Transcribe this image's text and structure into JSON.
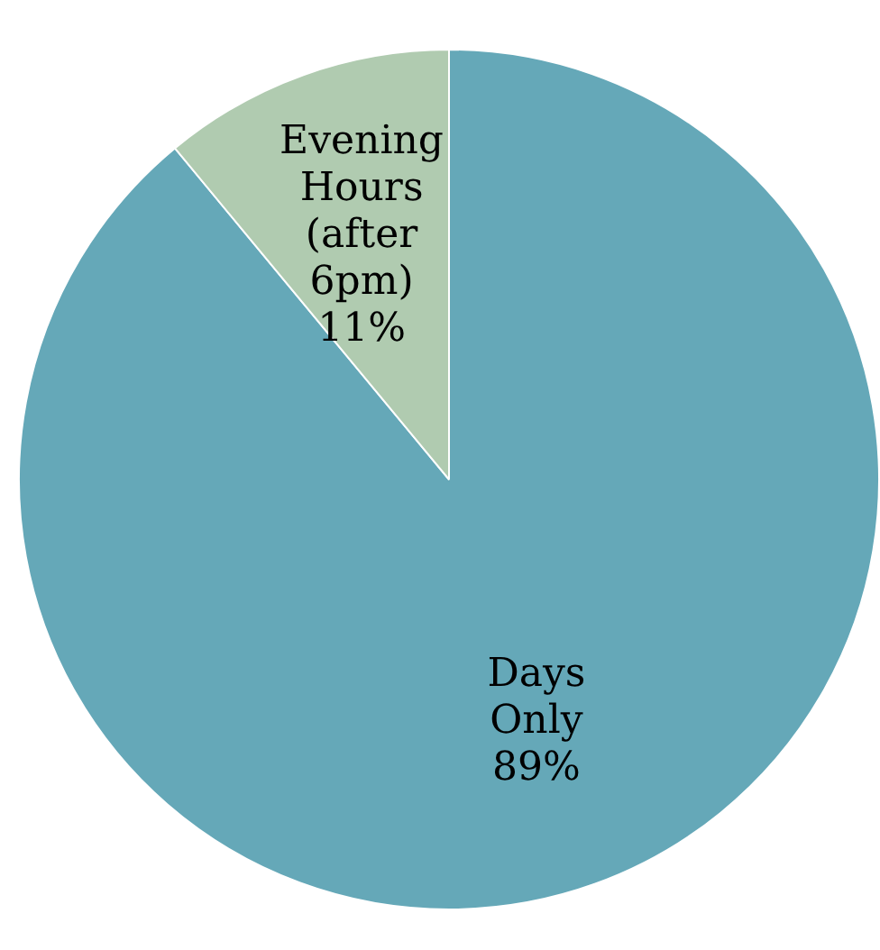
{
  "chart_data": {
    "type": "pie",
    "categories": [
      "Days Only",
      "Evening Hours (after 6pm)"
    ],
    "values": [
      89,
      11
    ],
    "value_labels": [
      "89%",
      "11%"
    ],
    "colors": [
      "#65a8b8",
      "#b0cbb0"
    ]
  }
}
